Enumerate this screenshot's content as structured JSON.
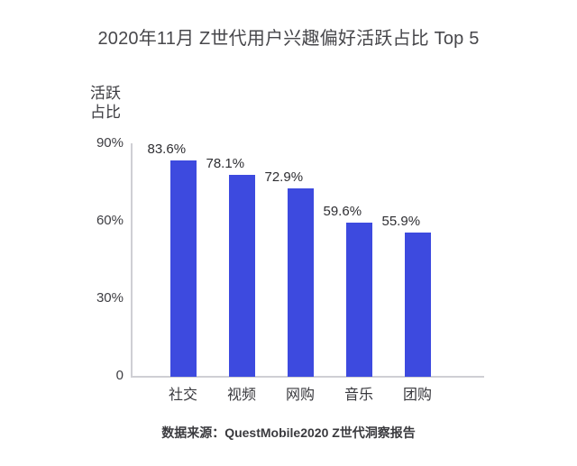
{
  "chart_data": {
    "type": "bar",
    "title": "2020年11月 Z世代用户兴趣偏好活跃占比 Top 5",
    "ylabel": "活跃\n占比",
    "xlabel": "",
    "categories": [
      "社交",
      "视频",
      "网购",
      "音乐",
      "团购"
    ],
    "values": [
      83.6,
      78.1,
      72.9,
      59.6,
      55.9
    ],
    "value_labels": [
      "83.6%",
      "78.1%",
      "72.9%",
      "59.6%",
      "55.9%"
    ],
    "ylim": [
      0,
      90
    ],
    "yticks": [
      {
        "value": 0,
        "label": "0"
      },
      {
        "value": 30,
        "label": "30%"
      },
      {
        "value": 60,
        "label": "60%"
      },
      {
        "value": 90,
        "label": "90%"
      }
    ],
    "grid": false,
    "legend": false,
    "bar_color": "#3D4ADF",
    "axis_color": "#CFCFD4",
    "source": "数据来源：QuestMobile2020 Z世代洞察报告"
  }
}
